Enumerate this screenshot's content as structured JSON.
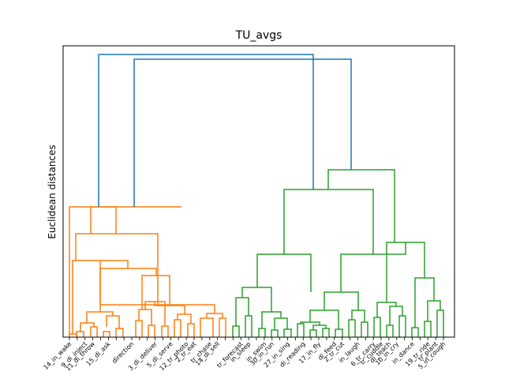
{
  "chart_data": {
    "type": "dendrogram",
    "title": "TU_avgs",
    "xlabel": "",
    "ylabel": "Euclidean distances",
    "grid": false,
    "legend": "none",
    "yaxis_ticks_visible": false,
    "ylim": [
      0,
      8.2
    ],
    "leaf_count": 49,
    "colors": {
      "cluster_a": "#ff7f0e",
      "cluster_b": "#2ca02c",
      "above_threshold": "#1f77b4"
    },
    "leaf_labels": [
      "14_in_wake",
      "",
      "9_di_inject",
      "11_di_throw",
      "",
      "15_di_ask",
      "",
      "",
      "direction",
      "",
      "",
      "3_di_deliver",
      "",
      "5_di_serve",
      "",
      "12_tr_photo",
      "2_tr_eat",
      "",
      "tr_chase",
      "14_di_sell",
      "",
      "",
      "tr_forecast",
      "in_sleep",
      "",
      "in_swim",
      "30_in_run",
      "",
      "27_in_sing",
      "",
      "di_reading",
      "",
      "17_in_fly",
      "",
      "di_feed",
      "2_tr_cut",
      "",
      "in_laugh",
      "",
      "6_tr_carry",
      "tr_cuddle",
      "di_teach",
      "10_in_cry",
      "",
      "in_dance",
      "",
      "19_tr_ride",
      "tr_plant",
      "5_in_cough"
    ]
  }
}
